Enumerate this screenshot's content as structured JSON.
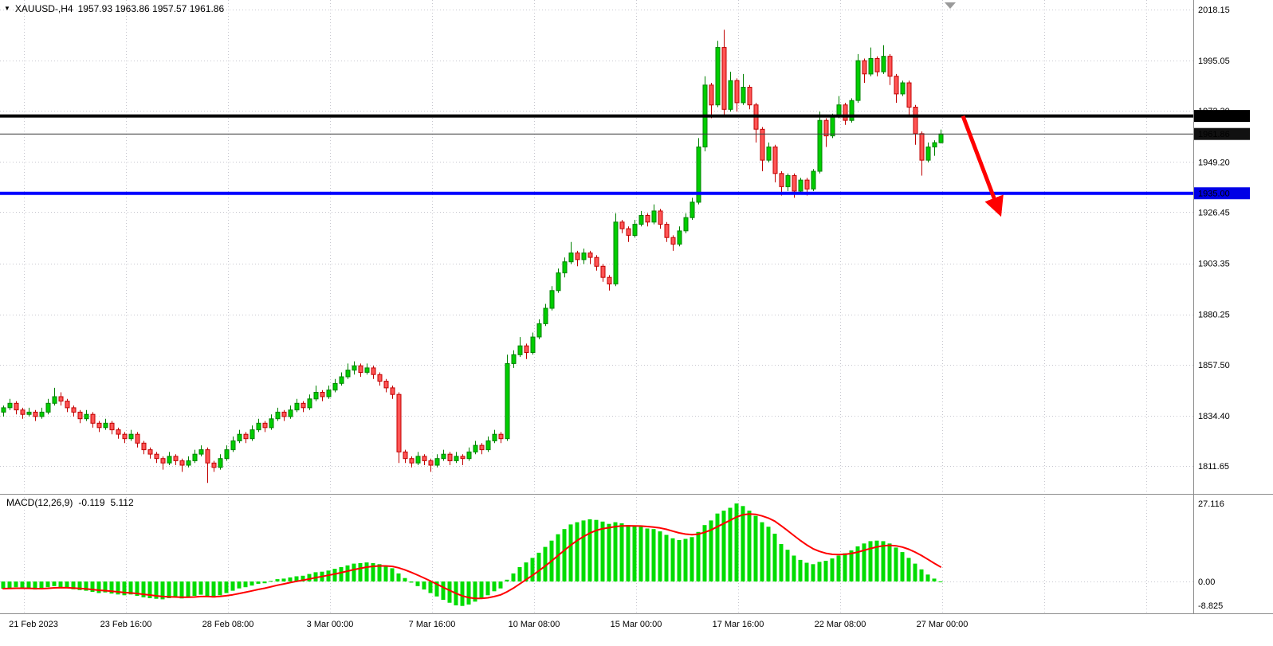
{
  "header": {
    "symbol": "XAUUSD-,H4",
    "ohlc": "1957.93 1963.86 1957.57 1961.86",
    "marker_icon": "triangle-down"
  },
  "colors": {
    "background": "#FFFFFF",
    "bull": "#00CE00",
    "bull_border": "#008000",
    "bear": "#FF5555",
    "bear_border": "#C00000",
    "grid": "#C6C6CE",
    "separator": "#8C8C8C",
    "macd_bar": "#00DC00",
    "macd_signal": "#FF0000",
    "axis_text": "#000000",
    "badge_text": "#FFFFFF",
    "arrow": "#FF0000",
    "shift_marker": "#9A9A9A"
  },
  "chart_data": [
    {
      "type": "candlestick",
      "symbol": "XAUUSD-",
      "timeframe": "H4",
      "y_ticks": [
        "2018.15",
        "1995.05",
        "1972.30",
        "1949.20",
        "1926.45",
        "1903.35",
        "1880.25",
        "1857.50",
        "1834.40",
        "1811.65"
      ],
      "x_ticks": [
        "21 Feb 2023",
        "23 Feb 16:00",
        "28 Feb 08:00",
        "3 Mar 00:00",
        "7 Mar 16:00",
        "10 Mar 08:00",
        "15 Mar 00:00",
        "17 Mar 16:00",
        "22 Mar 08:00",
        "27 Mar 00:00"
      ],
      "ylim": [
        1799,
        2022
      ],
      "hlines": [
        {
          "name": "resistance-line",
          "price": 1970.0,
          "label": "1970.00",
          "color": "#000000",
          "badge": "#000000",
          "width": 4
        },
        {
          "name": "bid-price-line",
          "price": 1961.86,
          "label": "1961.86",
          "color": "#3C3C3C",
          "badge": "#111111",
          "width": 1
        },
        {
          "name": "support-line",
          "price": 1935.0,
          "label": "1935.00",
          "color": "#0000FF",
          "badge": "#0000E6",
          "width": 4
        }
      ],
      "arrow": {
        "from": {
          "bar": 150.5,
          "price": 1970
        },
        "to": {
          "bar": 155.5,
          "price": 1932
        },
        "color": "#FF0000"
      },
      "ohlc": [
        [
          1836,
          1839,
          1834,
          1838
        ],
        [
          1838,
          1842,
          1837,
          1840
        ],
        [
          1840,
          1841,
          1835,
          1837
        ],
        [
          1837,
          1838,
          1833,
          1835
        ],
        [
          1835,
          1838,
          1834,
          1836
        ],
        [
          1836,
          1837,
          1832,
          1834
        ],
        [
          1834,
          1838,
          1833,
          1836
        ],
        [
          1836,
          1842,
          1835,
          1840
        ],
        [
          1840,
          1847,
          1839,
          1843
        ],
        [
          1843,
          1845,
          1839,
          1841
        ],
        [
          1841,
          1842,
          1836,
          1838
        ],
        [
          1838,
          1839,
          1834,
          1836
        ],
        [
          1836,
          1837,
          1831,
          1833
        ],
        [
          1833,
          1837,
          1832,
          1835
        ],
        [
          1835,
          1836,
          1829,
          1831
        ],
        [
          1831,
          1832,
          1827,
          1829
        ],
        [
          1829,
          1833,
          1828,
          1831
        ],
        [
          1831,
          1832,
          1826,
          1828
        ],
        [
          1828,
          1829,
          1824,
          1826
        ],
        [
          1826,
          1827,
          1822,
          1824
        ],
        [
          1824,
          1828,
          1823,
          1826
        ],
        [
          1826,
          1827,
          1820,
          1822
        ],
        [
          1822,
          1823,
          1817,
          1819
        ],
        [
          1819,
          1820,
          1815,
          1817
        ],
        [
          1817,
          1818,
          1813,
          1815
        ],
        [
          1815,
          1816,
          1810,
          1813
        ],
        [
          1813,
          1818,
          1812,
          1816
        ],
        [
          1816,
          1817,
          1812,
          1814
        ],
        [
          1814,
          1815,
          1809,
          1812
        ],
        [
          1812,
          1816,
          1811,
          1814
        ],
        [
          1814,
          1819,
          1813,
          1817
        ],
        [
          1817,
          1821,
          1816,
          1819
        ],
        [
          1819,
          1820,
          1804,
          1813
        ],
        [
          1813,
          1814,
          1809,
          1811
        ],
        [
          1811,
          1817,
          1810,
          1815
        ],
        [
          1815,
          1821,
          1814,
          1819
        ],
        [
          1819,
          1825,
          1818,
          1823
        ],
        [
          1823,
          1828,
          1822,
          1826
        ],
        [
          1826,
          1827,
          1822,
          1824
        ],
        [
          1824,
          1830,
          1823,
          1828
        ],
        [
          1828,
          1833,
          1827,
          1831
        ],
        [
          1831,
          1832,
          1827,
          1829
        ],
        [
          1829,
          1835,
          1828,
          1833
        ],
        [
          1833,
          1838,
          1832,
          1836
        ],
        [
          1836,
          1837,
          1832,
          1834
        ],
        [
          1834,
          1839,
          1833,
          1837
        ],
        [
          1837,
          1842,
          1836,
          1840
        ],
        [
          1840,
          1841,
          1836,
          1838
        ],
        [
          1838,
          1844,
          1837,
          1842
        ],
        [
          1842,
          1848,
          1841,
          1845
        ],
        [
          1845,
          1846,
          1841,
          1843
        ],
        [
          1843,
          1848,
          1842,
          1846
        ],
        [
          1846,
          1851,
          1845,
          1849
        ],
        [
          1849,
          1854,
          1848,
          1852
        ],
        [
          1852,
          1858,
          1851,
          1855
        ],
        [
          1855,
          1859,
          1853,
          1857
        ],
        [
          1857,
          1858,
          1852,
          1854
        ],
        [
          1854,
          1858,
          1853,
          1856
        ],
        [
          1856,
          1857,
          1851,
          1853
        ],
        [
          1853,
          1854,
          1848,
          1850
        ],
        [
          1850,
          1851,
          1845,
          1847
        ],
        [
          1847,
          1848,
          1842,
          1844
        ],
        [
          1844,
          1845,
          1813,
          1818
        ],
        [
          1818,
          1819,
          1813,
          1815
        ],
        [
          1815,
          1816,
          1811,
          1813
        ],
        [
          1813,
          1818,
          1812,
          1816
        ],
        [
          1816,
          1817,
          1812,
          1814
        ],
        [
          1814,
          1815,
          1809,
          1812
        ],
        [
          1812,
          1817,
          1811,
          1815
        ],
        [
          1815,
          1819,
          1814,
          1817
        ],
        [
          1817,
          1818,
          1812,
          1814
        ],
        [
          1814,
          1818,
          1813,
          1816
        ],
        [
          1816,
          1817,
          1812,
          1815
        ],
        [
          1815,
          1820,
          1814,
          1818
        ],
        [
          1818,
          1823,
          1817,
          1821
        ],
        [
          1821,
          1822,
          1817,
          1819
        ],
        [
          1819,
          1825,
          1818,
          1823
        ],
        [
          1823,
          1828,
          1822,
          1826
        ],
        [
          1826,
          1827,
          1822,
          1824
        ],
        [
          1824,
          1862,
          1823,
          1858
        ],
        [
          1858,
          1864,
          1856,
          1862
        ],
        [
          1862,
          1870,
          1861,
          1866
        ],
        [
          1866,
          1867,
          1860,
          1863
        ],
        [
          1863,
          1872,
          1862,
          1870
        ],
        [
          1870,
          1878,
          1869,
          1876
        ],
        [
          1876,
          1885,
          1875,
          1883
        ],
        [
          1883,
          1893,
          1882,
          1891
        ],
        [
          1891,
          1901,
          1890,
          1899
        ],
        [
          1899,
          1906,
          1897,
          1904
        ],
        [
          1904,
          1913,
          1903,
          1908
        ],
        [
          1908,
          1909,
          1902,
          1905
        ],
        [
          1905,
          1910,
          1903,
          1908
        ],
        [
          1908,
          1909,
          1903,
          1906
        ],
        [
          1906,
          1907,
          1900,
          1902
        ],
        [
          1902,
          1903,
          1895,
          1897
        ],
        [
          1897,
          1898,
          1891,
          1894
        ],
        [
          1894,
          1926,
          1893,
          1922
        ],
        [
          1922,
          1923,
          1917,
          1919
        ],
        [
          1919,
          1920,
          1913,
          1916
        ],
        [
          1916,
          1923,
          1915,
          1921
        ],
        [
          1921,
          1927,
          1920,
          1925
        ],
        [
          1925,
          1926,
          1920,
          1922
        ],
        [
          1922,
          1930,
          1921,
          1927
        ],
        [
          1927,
          1928,
          1919,
          1921
        ],
        [
          1921,
          1922,
          1913,
          1915
        ],
        [
          1915,
          1916,
          1909,
          1912
        ],
        [
          1912,
          1920,
          1911,
          1918
        ],
        [
          1918,
          1926,
          1917,
          1924
        ],
        [
          1924,
          1933,
          1923,
          1931
        ],
        [
          1931,
          1960,
          1930,
          1956
        ],
        [
          1956,
          1988,
          1954,
          1984
        ],
        [
          1984,
          1985,
          1969,
          1975
        ],
        [
          1975,
          2004,
          1974,
          2001
        ],
        [
          2001,
          2009,
          1970,
          1973
        ],
        [
          1973,
          1990,
          1972,
          1986
        ],
        [
          1986,
          1987,
          1972,
          1976
        ],
        [
          1976,
          1989,
          1975,
          1983
        ],
        [
          1983,
          1984,
          1973,
          1975
        ],
        [
          1975,
          1976,
          1958,
          1964
        ],
        [
          1964,
          1965,
          1945,
          1950
        ],
        [
          1950,
          1958,
          1949,
          1956
        ],
        [
          1956,
          1957,
          1940,
          1944
        ],
        [
          1944,
          1945,
          1934,
          1938
        ],
        [
          1938,
          1944,
          1936,
          1943
        ],
        [
          1943,
          1944,
          1933,
          1936
        ],
        [
          1936,
          1942,
          1935,
          1941
        ],
        [
          1941,
          1942,
          1934,
          1937
        ],
        [
          1937,
          1946,
          1936,
          1945
        ],
        [
          1945,
          1972,
          1944,
          1968
        ],
        [
          1968,
          1969,
          1956,
          1961
        ],
        [
          1961,
          1971,
          1960,
          1970
        ],
        [
          1970,
          1979,
          1969,
          1975
        ],
        [
          1975,
          1976,
          1966,
          1968
        ],
        [
          1968,
          1978,
          1967,
          1977
        ],
        [
          1977,
          1998,
          1976,
          1995
        ],
        [
          1995,
          1996,
          1985,
          1989
        ],
        [
          1989,
          2001,
          1988,
          1996
        ],
        [
          1996,
          1997,
          1988,
          1990
        ],
        [
          1990,
          2002,
          1989,
          1997
        ],
        [
          1997,
          1998,
          1984,
          1988
        ],
        [
          1988,
          1989,
          1976,
          1980
        ],
        [
          1980,
          1986,
          1979,
          1985
        ],
        [
          1985,
          1986,
          1970,
          1974
        ],
        [
          1974,
          1975,
          1957,
          1962
        ],
        [
          1962,
          1963,
          1943,
          1950
        ],
        [
          1950,
          1958,
          1949,
          1956
        ],
        [
          1956,
          1959,
          1952,
          1957.93
        ],
        [
          1957.93,
          1963.86,
          1957.57,
          1961.86
        ]
      ]
    },
    {
      "type": "bar",
      "title": "MACD(12,26,9)",
      "readout_main": "-0.119",
      "readout_signal": "5.112",
      "signal_period": 9,
      "y_ticks": [
        "27.116",
        "0.00",
        "-8.825"
      ],
      "ylim": [
        -8.825,
        27.116
      ],
      "values": [
        -2.5,
        -2.2,
        -2,
        -2.3,
        -2.6,
        -2.8,
        -2.5,
        -2,
        -1.6,
        -1.9,
        -2.3,
        -2.7,
        -3,
        -3.2,
        -3.6,
        -4,
        -3.8,
        -4.2,
        -4.5,
        -4.8,
        -4.5,
        -5,
        -5.5,
        -5.8,
        -6,
        -6.2,
        -5.8,
        -5.6,
        -5.9,
        -5.5,
        -5,
        -4.6,
        -5.2,
        -5.6,
        -4.8,
        -4,
        -3.2,
        -2.4,
        -2,
        -1.4,
        -0.8,
        -0.6,
        0.2,
        0.8,
        1,
        1.4,
        1.8,
        2,
        2.6,
        3.2,
        3.4,
        3.8,
        4.4,
        5,
        5.6,
        6.2,
        6.4,
        6.6,
        6.4,
        6,
        5.4,
        4.6,
        2.8,
        1.2,
        -0.4,
        -1.6,
        -2.8,
        -4,
        -5.2,
        -6.4,
        -7.4,
        -8.3,
        -8.5,
        -8,
        -7,
        -6,
        -4.8,
        -3.4,
        -2.4,
        0.6,
        2.8,
        5,
        6.6,
        8.2,
        10,
        12,
        14.2,
        16.4,
        18.2,
        19.8,
        20.6,
        21.2,
        21.6,
        21.4,
        20.8,
        20,
        20.6,
        20.2,
        19.6,
        19.2,
        19,
        18.4,
        18.2,
        17.4,
        16.2,
        15,
        14.4,
        14.8,
        15.4,
        17.2,
        19.6,
        21.2,
        23.6,
        24.6,
        25.6,
        27.1,
        26.2,
        24.6,
        22.8,
        20.6,
        19,
        16.6,
        13,
        11,
        9,
        7.5,
        6.5,
        6,
        6.8,
        7.2,
        8,
        9,
        9.8,
        10.8,
        12.2,
        13.2,
        14,
        14.2,
        14,
        13.2,
        11.8,
        10.2,
        8.2,
        6.2,
        4.2,
        2.4,
        1,
        -0.119
      ]
    }
  ]
}
